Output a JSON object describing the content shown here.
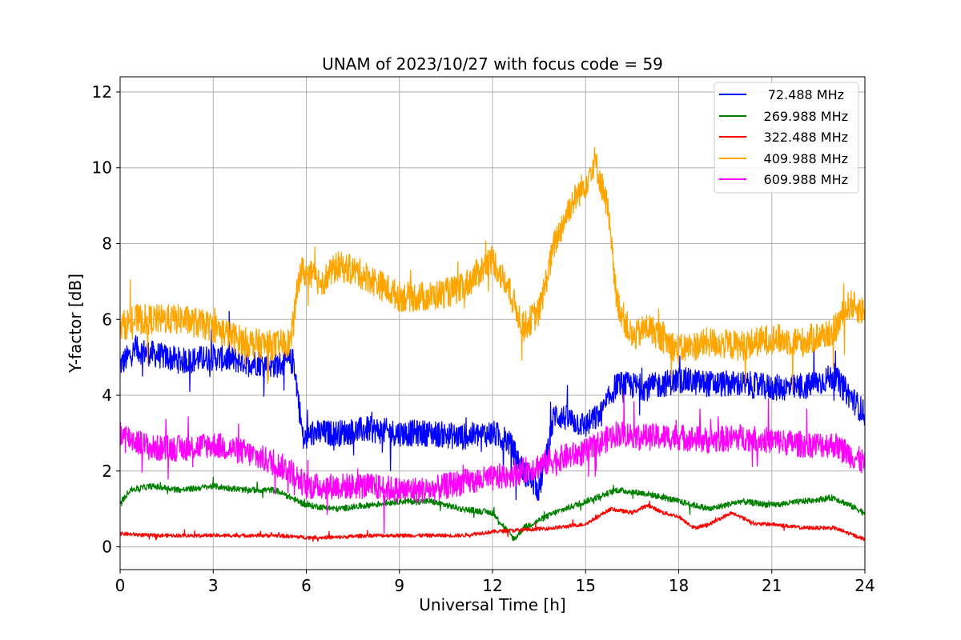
{
  "chart_data": {
    "type": "line",
    "title": "UNAM of 2023/10/27 with focus code = 59",
    "xlabel": "Universal Time [h]",
    "ylabel": "Y-factor [dB]",
    "xlim": [
      0,
      24
    ],
    "ylim": [
      -0.6,
      12.4
    ],
    "xticks": [
      0,
      3,
      6,
      9,
      12,
      15,
      18,
      21,
      24
    ],
    "yticks": [
      0,
      2,
      4,
      6,
      8,
      10,
      12
    ],
    "grid": true,
    "legend_position": "top-right",
    "series": [
      {
        "name": "72.488 MHz",
        "color": "#0000ff",
        "noise": 0.35,
        "x": [
          0,
          0.5,
          1,
          2,
          3,
          4,
          5,
          5.6,
          5.9,
          6.2,
          7,
          8,
          9,
          10,
          11,
          12,
          12.5,
          13,
          13.5,
          14,
          15,
          15.5,
          16,
          17,
          18,
          19,
          20,
          21,
          22,
          23,
          23.5,
          24
        ],
        "y": [
          4.8,
          5.2,
          5.1,
          4.9,
          5.0,
          4.9,
          4.8,
          4.9,
          2.8,
          3.0,
          3.0,
          3.1,
          3.0,
          3.0,
          2.9,
          3.0,
          2.8,
          2.0,
          1.5,
          3.5,
          3.2,
          3.5,
          4.3,
          4.2,
          4.4,
          4.3,
          4.3,
          4.2,
          4.2,
          4.5,
          4.0,
          3.5
        ]
      },
      {
        "name": "269.988 MHz",
        "color": "#008000",
        "noise": 0.08,
        "x": [
          0,
          0.3,
          1,
          2,
          3,
          4,
          5,
          6,
          7,
          8,
          9,
          10,
          11,
          12,
          12.7,
          13,
          14,
          15,
          16,
          17,
          18,
          19,
          20,
          21,
          22,
          23,
          24
        ],
        "y": [
          1.1,
          1.5,
          1.6,
          1.5,
          1.6,
          1.5,
          1.5,
          1.1,
          1.0,
          1.1,
          1.2,
          1.2,
          1.0,
          0.9,
          0.2,
          0.5,
          0.9,
          1.2,
          1.5,
          1.4,
          1.2,
          1.0,
          1.2,
          1.1,
          1.2,
          1.3,
          0.9
        ]
      },
      {
        "name": "322.488 MHz",
        "color": "#ff0000",
        "noise": 0.05,
        "x": [
          0,
          1,
          2,
          3,
          4,
          5,
          6,
          7,
          8,
          9,
          10,
          11,
          12,
          13,
          14,
          15,
          15.8,
          16.5,
          17,
          17.5,
          18,
          18.5,
          19,
          19.7,
          20.5,
          21,
          22,
          23,
          24
        ],
        "y": [
          0.35,
          0.3,
          0.3,
          0.3,
          0.3,
          0.3,
          0.25,
          0.25,
          0.3,
          0.3,
          0.3,
          0.3,
          0.4,
          0.45,
          0.5,
          0.6,
          1.0,
          0.9,
          1.1,
          0.9,
          0.8,
          0.5,
          0.6,
          0.9,
          0.6,
          0.6,
          0.5,
          0.5,
          0.2
        ]
      },
      {
        "name": "409.988 MHz",
        "color": "#ffa500",
        "noise": 0.4,
        "x": [
          0,
          0.5,
          1,
          2,
          3,
          4,
          5,
          5.5,
          5.8,
          6.5,
          7,
          7.5,
          8,
          9,
          10,
          11,
          11.5,
          12,
          12.5,
          13,
          13.5,
          14,
          14.5,
          15,
          15.3,
          15.7,
          16,
          16.5,
          17,
          18,
          19,
          20,
          21,
          22,
          23,
          23.5,
          24
        ],
        "y": [
          5.8,
          6.0,
          6.0,
          6.0,
          5.8,
          5.4,
          5.3,
          5.4,
          7.3,
          7.0,
          7.4,
          7.3,
          7.1,
          6.6,
          6.6,
          6.8,
          7.2,
          7.6,
          6.8,
          5.8,
          6.2,
          8.0,
          9.0,
          9.6,
          10.2,
          9.0,
          6.5,
          5.5,
          5.8,
          5.2,
          5.4,
          5.3,
          5.5,
          5.4,
          5.7,
          6.4,
          6.2
        ]
      },
      {
        "name": "609.988 MHz",
        "color": "#ff00ff",
        "noise": 0.35,
        "x": [
          0,
          0.5,
          1,
          2,
          3,
          4,
          5,
          5.5,
          6,
          7,
          8,
          9,
          10,
          11,
          12,
          13,
          14,
          15,
          16,
          17,
          18,
          19,
          20,
          21,
          22,
          23,
          24
        ],
        "y": [
          3.0,
          2.8,
          2.6,
          2.6,
          2.7,
          2.5,
          2.2,
          2.0,
          1.6,
          1.6,
          1.6,
          1.5,
          1.5,
          1.7,
          1.8,
          2.0,
          2.3,
          2.5,
          3.0,
          2.9,
          2.9,
          2.8,
          2.9,
          2.8,
          2.7,
          2.7,
          2.2
        ]
      }
    ]
  }
}
